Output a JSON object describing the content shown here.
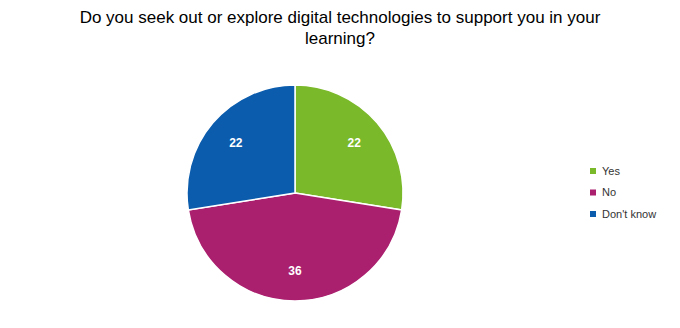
{
  "chart_data": {
    "type": "pie",
    "title": "Do you seek out or explore digital technologies to support you in your learning?",
    "categories": [
      "Yes",
      "No",
      "Don't know"
    ],
    "values": [
      22,
      36,
      22
    ],
    "colors": [
      "#7ab929",
      "#aa1f6e",
      "#0b5cad"
    ],
    "data_labels": true,
    "legend": "right"
  }
}
